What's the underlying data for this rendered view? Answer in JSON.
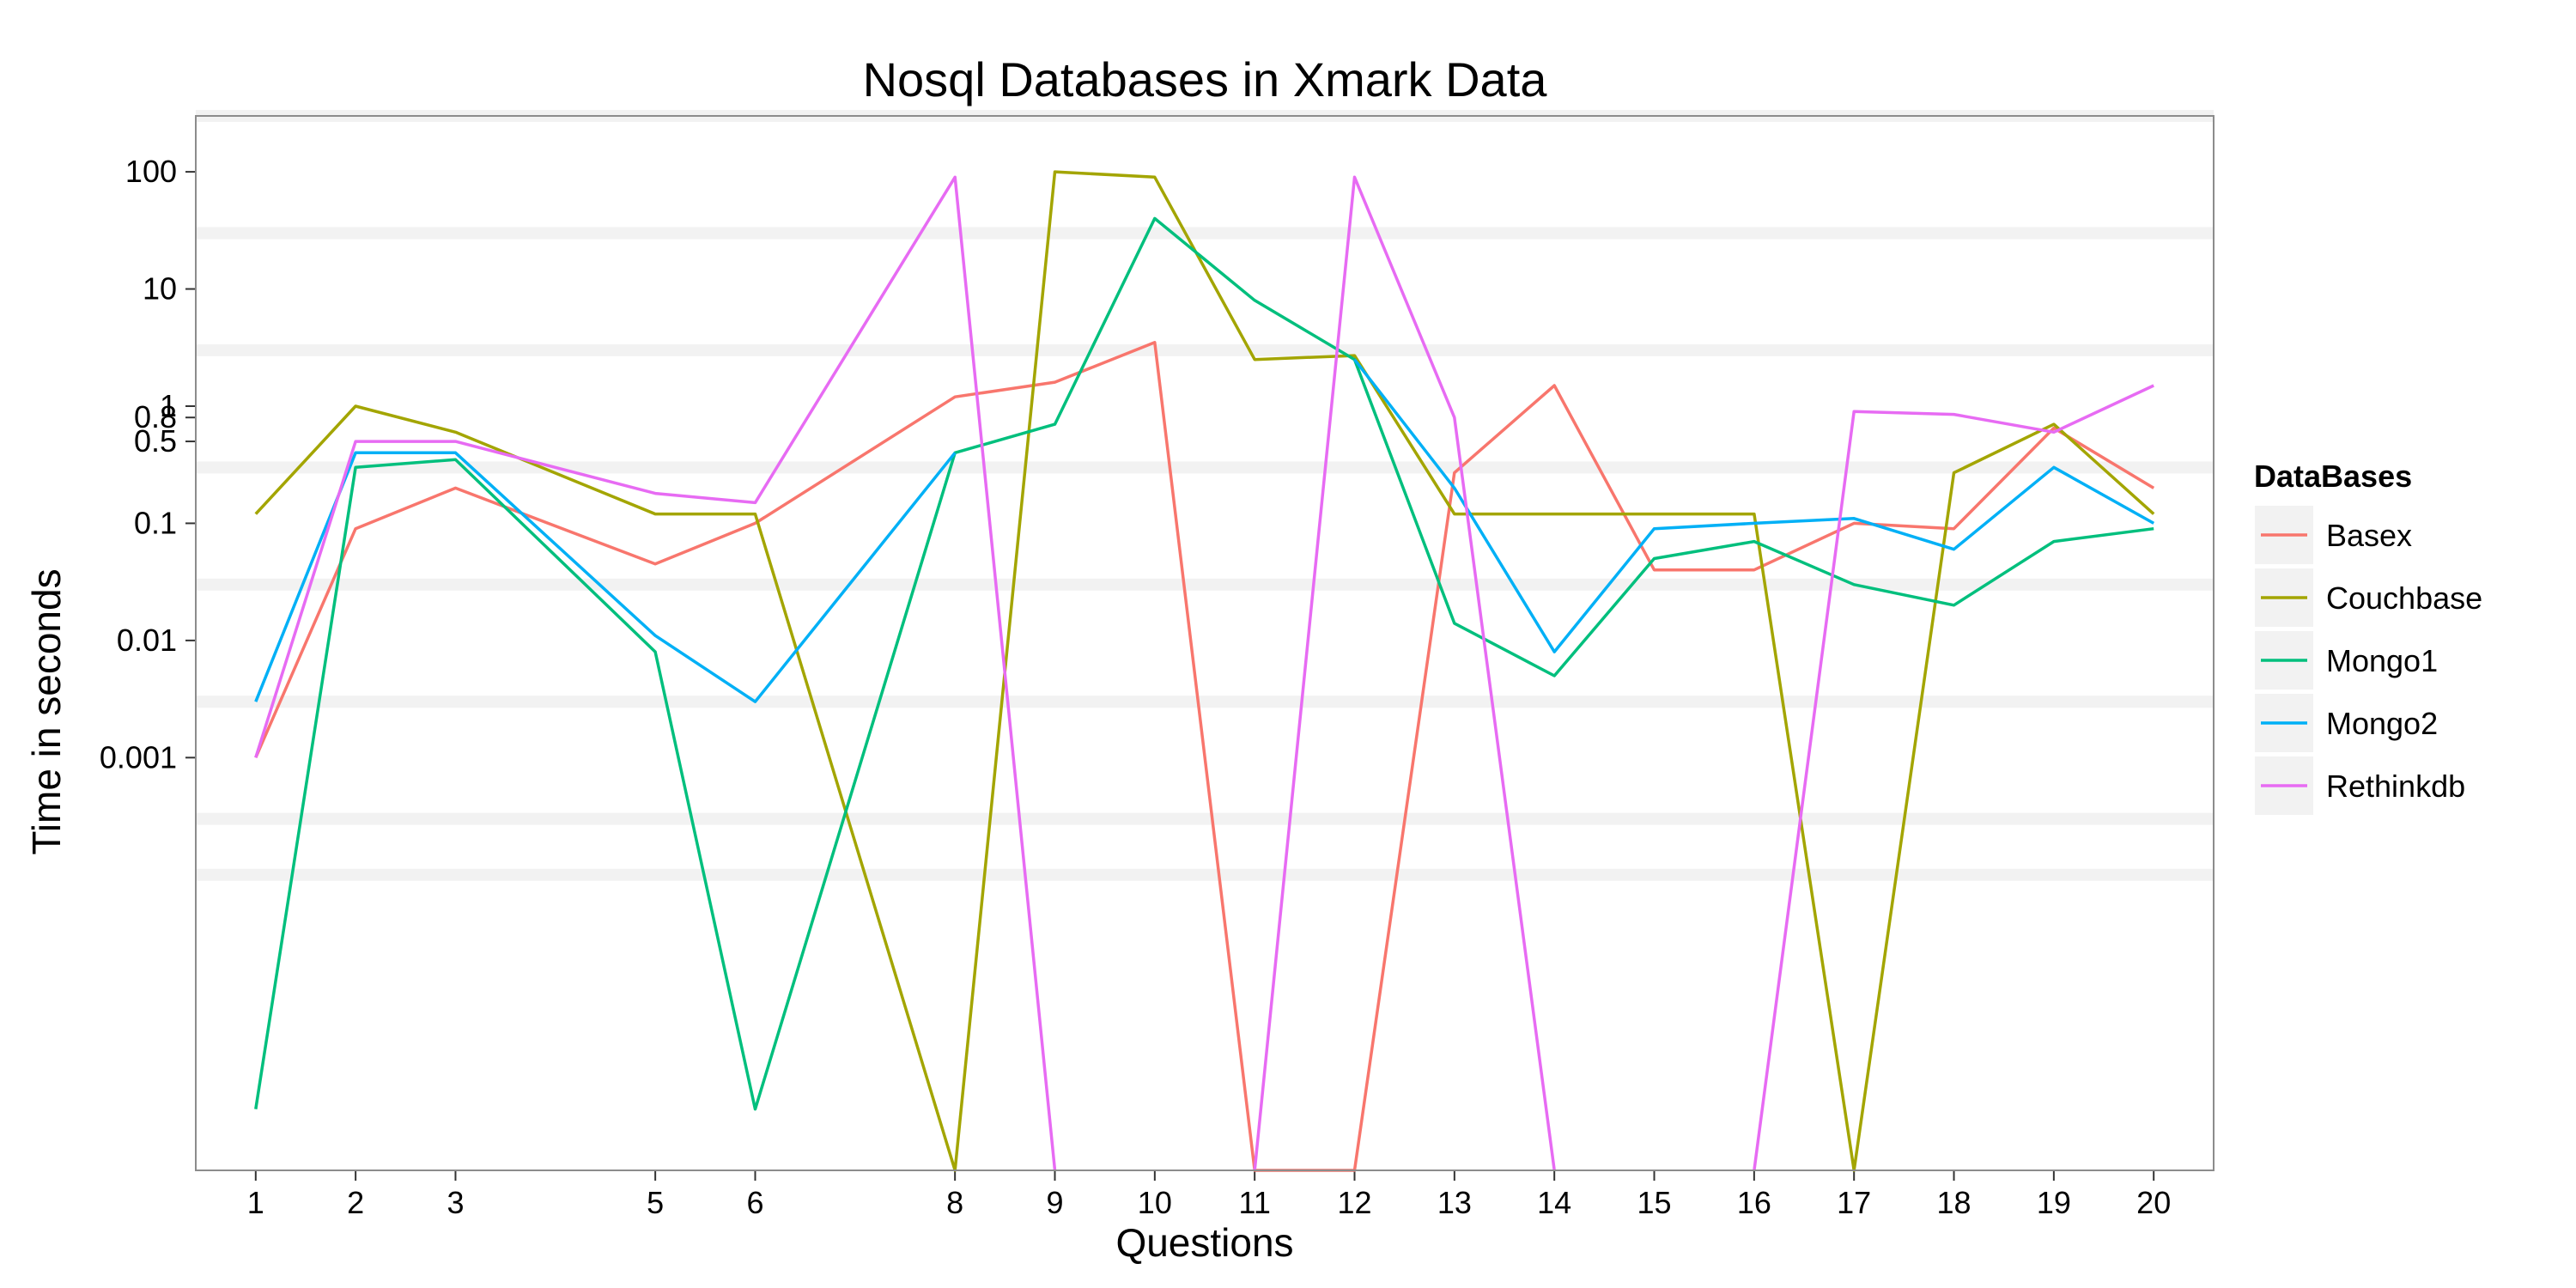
{
  "chart_data": {
    "type": "line",
    "title": "Nosql Databases in Xmark Data",
    "xlabel": "Questions",
    "ylabel": "Time in seconds",
    "y_scale": "log",
    "y_tick_labels": [
      "0.001",
      "0.01",
      "0.1",
      "0.5",
      "0.8",
      "1",
      "10",
      "100"
    ],
    "y_tick_values": [
      0.001,
      0.01,
      0.1,
      0.5,
      0.8,
      1,
      10,
      100
    ],
    "x_tick_labels": [
      "1",
      "2",
      "3",
      "5",
      "6",
      "8",
      "9",
      "10",
      "11",
      "12",
      "13",
      "14",
      "15",
      "16",
      "17",
      "18",
      "19",
      "20"
    ],
    "x": [
      1,
      2,
      3,
      5,
      6,
      8,
      9,
      10,
      11,
      12,
      13,
      14,
      15,
      16,
      17,
      18,
      19,
      20
    ],
    "ylim": [
      3e-07,
      300
    ],
    "grid": true,
    "legend_title": "DataBases",
    "legend_position": "right",
    "series": [
      {
        "name": "Basex",
        "color": "#F8766D",
        "values": [
          0.001,
          0.09,
          0.2,
          0.045,
          0.1,
          1.2,
          1.6,
          3.5,
          3e-07,
          3e-07,
          0.27,
          1.5,
          0.04,
          0.04,
          0.1,
          0.09,
          0.65,
          0.2
        ]
      },
      {
        "name": "Couchbase",
        "color": "#A3A500",
        "values": [
          0.12,
          1.0,
          0.6,
          0.12,
          0.12,
          3e-07,
          100,
          90,
          2.5,
          2.7,
          0.12,
          0.12,
          0.12,
          0.12,
          3e-07,
          0.27,
          0.7,
          0.12
        ]
      },
      {
        "name": "Mongo1",
        "color": "#00BF7D",
        "values": [
          1e-06,
          0.3,
          0.35,
          0.008,
          1e-06,
          0.4,
          0.7,
          40,
          8,
          2.5,
          0.014,
          0.005,
          0.05,
          0.07,
          0.03,
          0.02,
          0.07,
          0.09
        ]
      },
      {
        "name": "Mongo2",
        "color": "#00B0F6",
        "values": [
          0.003,
          0.4,
          0.4,
          0.011,
          0.003,
          0.4,
          null,
          null,
          null,
          2.5,
          0.2,
          0.008,
          0.09,
          0.1,
          0.11,
          0.06,
          0.3,
          0.1
        ]
      },
      {
        "name": "Rethinkdb",
        "color": "#E76BF3",
        "values": [
          0.001,
          0.5,
          0.5,
          0.18,
          0.15,
          90,
          3e-07,
          null,
          3e-07,
          90,
          0.8,
          3e-07,
          null,
          3e-07,
          0.9,
          0.85,
          0.6,
          1.5
        ]
      }
    ]
  }
}
